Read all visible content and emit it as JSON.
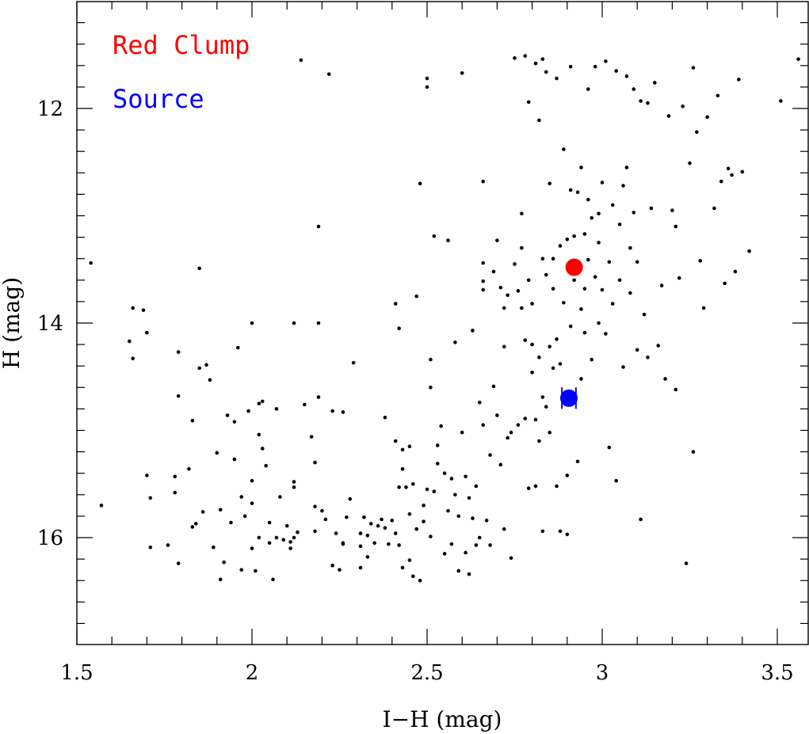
{
  "chart_data": {
    "type": "scatter",
    "xlabel": "I−H (mag)",
    "ylabel": "H (mag)",
    "xlim": [
      1.5,
      3.6
    ],
    "ylim": [
      17.0,
      11.0
    ],
    "y_inverted": true,
    "grid": false,
    "x_major_ticks": [
      1.5,
      2,
      2.5,
      3,
      3.5
    ],
    "x_tick_labels": [
      "1.5",
      "2",
      "2.5",
      "3",
      "3.5"
    ],
    "y_major_ticks": [
      12,
      14,
      16
    ],
    "y_tick_labels": [
      "12",
      "14",
      "16"
    ],
    "legend": {
      "placement": "top-left",
      "entries": [
        {
          "label": "Red Clump",
          "color": "#ff0000"
        },
        {
          "label": "Source",
          "color": "#0000ff"
        }
      ]
    },
    "series": [
      {
        "name": "",
        "color": "#000000",
        "marker": "dot",
        "points": [
          [
            1.54,
            13.44
          ],
          [
            1.57,
            15.7
          ],
          [
            1.65,
            14.17
          ],
          [
            1.66,
            13.86
          ],
          [
            1.66,
            14.33
          ],
          [
            1.69,
            13.88
          ],
          [
            1.7,
            14.09
          ],
          [
            1.7,
            15.42
          ],
          [
            1.71,
            15.63
          ],
          [
            1.71,
            16.09
          ],
          [
            1.76,
            16.07
          ],
          [
            1.78,
            15.58
          ],
          [
            1.78,
            15.43
          ],
          [
            1.79,
            16.24
          ],
          [
            1.79,
            14.27
          ],
          [
            1.79,
            14.68
          ],
          [
            1.82,
            15.36
          ],
          [
            1.83,
            14.91
          ],
          [
            1.83,
            15.9
          ],
          [
            1.84,
            15.87
          ],
          [
            1.85,
            14.42
          ],
          [
            1.85,
            13.49
          ],
          [
            1.86,
            15.76
          ],
          [
            1.87,
            14.39
          ],
          [
            1.88,
            14.53
          ],
          [
            1.89,
            16.09
          ],
          [
            1.9,
            15.21
          ],
          [
            1.91,
            15.74
          ],
          [
            1.91,
            16.39
          ],
          [
            1.92,
            16.23
          ],
          [
            1.93,
            14.86
          ],
          [
            1.94,
            15.86
          ],
          [
            1.95,
            14.92
          ],
          [
            1.95,
            15.27
          ],
          [
            1.96,
            14.23
          ],
          [
            1.97,
            15.62
          ],
          [
            1.97,
            16.3
          ],
          [
            1.98,
            15.8
          ],
          [
            1.99,
            14.82
          ],
          [
            2.0,
            14.0
          ],
          [
            2.0,
            15.47
          ],
          [
            2.0,
            15.68
          ],
          [
            2.0,
            16.1
          ],
          [
            2.01,
            16.31
          ],
          [
            2.02,
            14.75
          ],
          [
            2.02,
            15.04
          ],
          [
            2.02,
            16.0
          ],
          [
            2.03,
            15.17
          ],
          [
            2.03,
            14.73
          ],
          [
            2.04,
            15.33
          ],
          [
            2.05,
            16.05
          ],
          [
            2.05,
            15.86
          ],
          [
            2.06,
            16.39
          ],
          [
            2.07,
            14.8
          ],
          [
            2.07,
            16.0
          ],
          [
            2.08,
            15.62
          ],
          [
            2.09,
            16.02
          ],
          [
            2.1,
            15.89
          ],
          [
            2.11,
            16.04
          ],
          [
            2.11,
            16.1
          ],
          [
            2.12,
            15.53
          ],
          [
            2.12,
            16.0
          ],
          [
            2.12,
            15.48
          ],
          [
            2.12,
            14.0
          ],
          [
            2.13,
            15.95
          ],
          [
            2.14,
            11.55
          ],
          [
            2.15,
            14.76
          ],
          [
            2.17,
            15.06
          ],
          [
            2.18,
            15.3
          ],
          [
            2.18,
            15.71
          ],
          [
            2.18,
            15.94
          ],
          [
            2.19,
            14.0
          ],
          [
            2.19,
            14.69
          ],
          [
            2.19,
            13.1
          ],
          [
            2.2,
            15.75
          ],
          [
            2.21,
            15.83
          ],
          [
            2.22,
            11.68
          ],
          [
            2.23,
            16.26
          ],
          [
            2.23,
            14.82
          ],
          [
            2.24,
            15.96
          ],
          [
            2.25,
            16.3
          ],
          [
            2.26,
            16.05
          ],
          [
            2.26,
            16.06
          ],
          [
            2.26,
            14.83
          ],
          [
            2.27,
            15.81
          ],
          [
            2.28,
            15.64
          ],
          [
            2.29,
            14.37
          ],
          [
            2.31,
            15.96
          ],
          [
            2.31,
            16.08
          ],
          [
            2.31,
            16.28
          ],
          [
            2.32,
            15.81
          ],
          [
            2.33,
            15.98
          ],
          [
            2.33,
            16.18
          ],
          [
            2.34,
            15.87
          ],
          [
            2.35,
            16.05
          ],
          [
            2.36,
            15.89
          ],
          [
            2.37,
            15.83
          ],
          [
            2.38,
            14.88
          ],
          [
            2.38,
            15.91
          ],
          [
            2.39,
            16.06
          ],
          [
            2.4,
            15.84
          ],
          [
            2.41,
            13.82
          ],
          [
            2.41,
            15.1
          ],
          [
            2.41,
            15.96
          ],
          [
            2.42,
            14.05
          ],
          [
            2.42,
            15.53
          ],
          [
            2.42,
            16.07
          ],
          [
            2.43,
            16.28
          ],
          [
            2.43,
            15.36
          ],
          [
            2.43,
            15.18
          ],
          [
            2.44,
            15.53
          ],
          [
            2.45,
            15.15
          ],
          [
            2.45,
            15.78
          ],
          [
            2.45,
            16.21
          ],
          [
            2.46,
            15.5
          ],
          [
            2.46,
            16.36
          ],
          [
            2.47,
            15.92
          ],
          [
            2.47,
            13.75
          ],
          [
            2.48,
            12.7
          ],
          [
            2.48,
            16.4
          ],
          [
            2.49,
            15.7
          ],
          [
            2.49,
            15.85
          ],
          [
            2.5,
            11.72
          ],
          [
            2.5,
            11.8
          ],
          [
            2.5,
            15.55
          ],
          [
            2.51,
            14.34
          ],
          [
            2.51,
            14.6
          ],
          [
            2.51,
            15.99
          ],
          [
            2.52,
            15.57
          ],
          [
            2.52,
            13.19
          ],
          [
            2.53,
            15.14
          ],
          [
            2.53,
            15.31
          ],
          [
            2.54,
            14.96
          ],
          [
            2.55,
            15.4
          ],
          [
            2.55,
            16.15
          ],
          [
            2.56,
            13.23
          ],
          [
            2.56,
            15.75
          ],
          [
            2.57,
            15.45
          ],
          [
            2.57,
            16.06
          ],
          [
            2.58,
            14.18
          ],
          [
            2.58,
            15.6
          ],
          [
            2.59,
            15.8
          ],
          [
            2.59,
            16.31
          ],
          [
            2.6,
            15.02
          ],
          [
            2.6,
            11.67
          ],
          [
            2.61,
            15.43
          ],
          [
            2.61,
            16.14
          ],
          [
            2.62,
            15.63
          ],
          [
            2.62,
            16.34
          ],
          [
            2.63,
            15.82
          ],
          [
            2.63,
            14.07
          ],
          [
            2.64,
            16.07
          ],
          [
            2.64,
            15.52
          ],
          [
            2.65,
            14.74
          ],
          [
            2.65,
            16.0
          ],
          [
            2.66,
            13.44
          ],
          [
            2.66,
            13.69
          ],
          [
            2.66,
            12.68
          ],
          [
            2.66,
            13.61
          ],
          [
            2.66,
            14.95
          ],
          [
            2.67,
            15.84
          ],
          [
            2.68,
            16.07
          ],
          [
            2.68,
            15.23
          ],
          [
            2.69,
            13.52
          ],
          [
            2.69,
            14.59
          ],
          [
            2.7,
            13.23
          ],
          [
            2.7,
            14.86
          ],
          [
            2.71,
            13.67
          ],
          [
            2.71,
            15.32
          ],
          [
            2.72,
            14.22
          ],
          [
            2.72,
            15.92
          ],
          [
            2.72,
            13.86
          ],
          [
            2.73,
            15.07
          ],
          [
            2.73,
            13.74
          ],
          [
            2.74,
            15.02
          ],
          [
            2.74,
            16.19
          ],
          [
            2.75,
            11.53
          ],
          [
            2.75,
            13.45
          ],
          [
            2.76,
            13.7
          ],
          [
            2.76,
            14.95
          ],
          [
            2.77,
            12.98
          ],
          [
            2.77,
            13.3
          ],
          [
            2.77,
            13.86
          ],
          [
            2.78,
            11.51
          ],
          [
            2.78,
            14.16
          ],
          [
            2.78,
            14.89
          ],
          [
            2.79,
            11.94
          ],
          [
            2.79,
            13.6
          ],
          [
            2.79,
            15.54
          ],
          [
            2.8,
            14.2
          ],
          [
            2.8,
            14.46
          ],
          [
            2.8,
            13.82
          ],
          [
            2.81,
            11.58
          ],
          [
            2.81,
            14.9
          ],
          [
            2.81,
            15.52
          ],
          [
            2.82,
            12.11
          ],
          [
            2.82,
            14.32
          ],
          [
            2.82,
            15.1
          ],
          [
            2.83,
            11.54
          ],
          [
            2.83,
            13.4
          ],
          [
            2.83,
            14.69
          ],
          [
            2.83,
            15.94
          ],
          [
            2.84,
            11.66
          ],
          [
            2.84,
            13.55
          ],
          [
            2.84,
            14.78
          ],
          [
            2.85,
            12.7
          ],
          [
            2.85,
            14.22
          ],
          [
            2.85,
            15.02
          ],
          [
            2.86,
            13.4
          ],
          [
            2.86,
            14.42
          ],
          [
            2.86,
            13.68
          ],
          [
            2.87,
            11.72
          ],
          [
            2.87,
            14.15
          ],
          [
            2.87,
            15.52
          ],
          [
            2.88,
            13.28
          ],
          [
            2.88,
            14.38
          ],
          [
            2.88,
            15.94
          ],
          [
            2.89,
            12.38
          ],
          [
            2.89,
            13.81
          ],
          [
            2.89,
            14.66
          ],
          [
            2.9,
            13.22
          ],
          [
            2.9,
            15.42
          ],
          [
            2.9,
            15.97
          ],
          [
            2.91,
            12.76
          ],
          [
            2.91,
            14.03
          ],
          [
            2.91,
            11.61
          ],
          [
            2.91,
            13.43
          ],
          [
            2.92,
            13.19
          ],
          [
            2.92,
            13.6
          ],
          [
            2.92,
            14.7
          ],
          [
            2.93,
            12.78
          ],
          [
            2.93,
            13.44
          ],
          [
            2.93,
            15.29
          ],
          [
            2.94,
            12.55
          ],
          [
            2.94,
            13.87
          ],
          [
            2.94,
            14.52
          ],
          [
            2.95,
            13.17
          ],
          [
            2.95,
            13.68
          ],
          [
            2.95,
            14.09
          ],
          [
            2.96,
            11.82
          ],
          [
            2.96,
            13.41
          ],
          [
            2.96,
            12.85
          ],
          [
            2.97,
            13.02
          ],
          [
            2.97,
            14.34
          ],
          [
            2.98,
            11.61
          ],
          [
            2.98,
            13.57
          ],
          [
            2.99,
            12.98
          ],
          [
            2.99,
            13.25
          ],
          [
            2.99,
            14.0
          ],
          [
            3.0,
            12.69
          ],
          [
            3.0,
            13.69
          ],
          [
            3.01,
            11.56
          ],
          [
            3.01,
            14.1
          ],
          [
            3.02,
            13.43
          ],
          [
            3.02,
            15.16
          ],
          [
            3.03,
            12.9
          ],
          [
            3.03,
            13.82
          ],
          [
            3.04,
            15.47
          ],
          [
            3.04,
            11.65
          ],
          [
            3.05,
            13.08
          ],
          [
            3.05,
            13.6
          ],
          [
            3.06,
            12.72
          ],
          [
            3.06,
            14.41
          ],
          [
            3.07,
            11.7
          ],
          [
            3.07,
            12.55
          ],
          [
            3.08,
            13.3
          ],
          [
            3.08,
            13.72
          ],
          [
            3.09,
            11.82
          ],
          [
            3.09,
            12.97
          ],
          [
            3.1,
            13.43
          ],
          [
            3.1,
            14.25
          ],
          [
            3.11,
            15.83
          ],
          [
            3.11,
            11.93
          ],
          [
            3.12,
            13.92
          ],
          [
            3.13,
            11.95
          ],
          [
            3.13,
            14.32
          ],
          [
            3.14,
            12.93
          ],
          [
            3.15,
            11.76
          ],
          [
            3.16,
            14.21
          ],
          [
            3.17,
            13.65
          ],
          [
            3.18,
            14.52
          ],
          [
            3.19,
            12.07
          ],
          [
            3.2,
            12.95
          ],
          [
            3.21,
            13.1
          ],
          [
            3.21,
            14.62
          ],
          [
            3.22,
            13.58
          ],
          [
            3.23,
            11.98
          ],
          [
            3.24,
            16.24
          ],
          [
            3.25,
            12.51
          ],
          [
            3.26,
            11.62
          ],
          [
            3.26,
            15.2
          ],
          [
            3.27,
            12.22
          ],
          [
            3.28,
            13.42
          ],
          [
            3.29,
            13.86
          ],
          [
            3.3,
            12.08
          ],
          [
            3.32,
            12.93
          ],
          [
            3.33,
            11.88
          ],
          [
            3.34,
            12.68
          ],
          [
            3.35,
            13.63
          ],
          [
            3.36,
            12.56
          ],
          [
            3.37,
            12.62
          ],
          [
            3.38,
            13.52
          ],
          [
            3.39,
            11.73
          ],
          [
            3.4,
            12.59
          ],
          [
            3.42,
            13.33
          ],
          [
            3.51,
            11.93
          ],
          [
            3.56,
            11.54
          ]
        ]
      },
      {
        "name": "Red Clump",
        "color": "#ff0000",
        "marker": "large-circle",
        "points": [
          [
            2.92,
            13.48
          ]
        ]
      },
      {
        "name": "Source",
        "color": "#0000ff",
        "marker": "large-circle",
        "points": [
          [
            2.905,
            14.7
          ]
        ],
        "x_err": 0.02,
        "y_err": 0.1
      }
    ]
  }
}
